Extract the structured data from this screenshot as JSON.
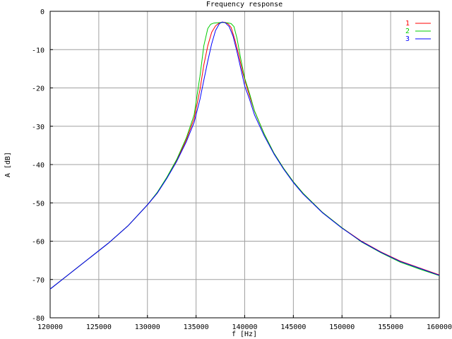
{
  "chart_data": {
    "type": "line",
    "title": "Frequency response",
    "xlabel": "f [Hz]",
    "ylabel": "A [dB]",
    "xlim": [
      120000,
      160000
    ],
    "ylim": [
      -80,
      0
    ],
    "xticks": [
      120000,
      125000,
      130000,
      135000,
      140000,
      145000,
      150000,
      155000,
      160000
    ],
    "yticks": [
      0,
      -10,
      -20,
      -30,
      -40,
      -50,
      -60,
      -70,
      -80
    ],
    "grid": true,
    "legend_position": "top-right",
    "series": [
      {
        "name": "1",
        "color": "#ff0000",
        "x": [
          120000,
          122000,
          124000,
          126000,
          128000,
          130000,
          131000,
          132000,
          133000,
          134000,
          134800,
          135400,
          135800,
          136200,
          136600,
          137000,
          137400,
          137700,
          138000,
          138300,
          138600,
          139000,
          139400,
          139800,
          140300,
          141000,
          142000,
          143000,
          144000,
          145000,
          146000,
          148000,
          150000,
          152000,
          154000,
          156000,
          158000,
          160000
        ],
        "y": [
          -72.5,
          -68.5,
          -64.5,
          -60.5,
          -56.0,
          -50.5,
          -47.5,
          -43.5,
          -39.0,
          -33.5,
          -28.0,
          -20.5,
          -14.0,
          -9.0,
          -5.5,
          -3.8,
          -3.0,
          -2.8,
          -2.9,
          -3.3,
          -4.2,
          -7.5,
          -11.5,
          -16.0,
          -20.5,
          -26.0,
          -32.0,
          -37.0,
          -41.0,
          -44.5,
          -47.5,
          -52.5,
          -56.5,
          -60.0,
          -62.8,
          -65.2,
          -67.0,
          -68.8
        ]
      },
      {
        "name": "2",
        "color": "#00cc00",
        "x": [
          120000,
          122000,
          124000,
          126000,
          128000,
          130000,
          131000,
          132000,
          133000,
          134000,
          134800,
          135400,
          135800,
          136200,
          136500,
          136800,
          137200,
          137700,
          138200,
          138600,
          138900,
          139200,
          139600,
          140000,
          140500,
          141000,
          142000,
          143000,
          144000,
          145000,
          146000,
          148000,
          150000,
          152000,
          154000,
          156000,
          158000,
          160000
        ],
        "y": [
          -72.5,
          -68.5,
          -64.5,
          -60.5,
          -56.0,
          -50.5,
          -47.3,
          -43.3,
          -38.7,
          -33.0,
          -27.0,
          -17.0,
          -9.0,
          -4.5,
          -3.4,
          -3.1,
          -3.0,
          -2.9,
          -3.0,
          -3.2,
          -4.0,
          -7.0,
          -12.5,
          -17.5,
          -21.5,
          -26.0,
          -32.0,
          -37.0,
          -41.0,
          -44.5,
          -47.5,
          -52.5,
          -56.5,
          -60.2,
          -63.0,
          -65.5,
          -67.3,
          -69.0
        ]
      },
      {
        "name": "3",
        "color": "#0000ff",
        "x": [
          120000,
          122000,
          124000,
          126000,
          128000,
          130000,
          131000,
          132000,
          133000,
          134000,
          134800,
          135400,
          135800,
          136200,
          136600,
          137000,
          137400,
          137700,
          138000,
          138400,
          138800,
          139200,
          139600,
          140000,
          140500,
          141000,
          142000,
          143000,
          144000,
          145000,
          146000,
          148000,
          150000,
          152000,
          154000,
          156000,
          158000,
          160000
        ],
        "y": [
          -72.5,
          -68.5,
          -64.5,
          -60.5,
          -56.0,
          -50.5,
          -47.5,
          -43.6,
          -39.2,
          -34.0,
          -29.0,
          -23.0,
          -18.0,
          -13.0,
          -8.5,
          -5.0,
          -3.2,
          -2.8,
          -3.0,
          -4.0,
          -6.5,
          -10.5,
          -15.0,
          -19.5,
          -23.0,
          -27.0,
          -32.5,
          -37.2,
          -41.2,
          -44.7,
          -47.7,
          -52.6,
          -56.6,
          -60.1,
          -62.9,
          -65.3,
          -67.1,
          -68.9
        ]
      }
    ]
  }
}
